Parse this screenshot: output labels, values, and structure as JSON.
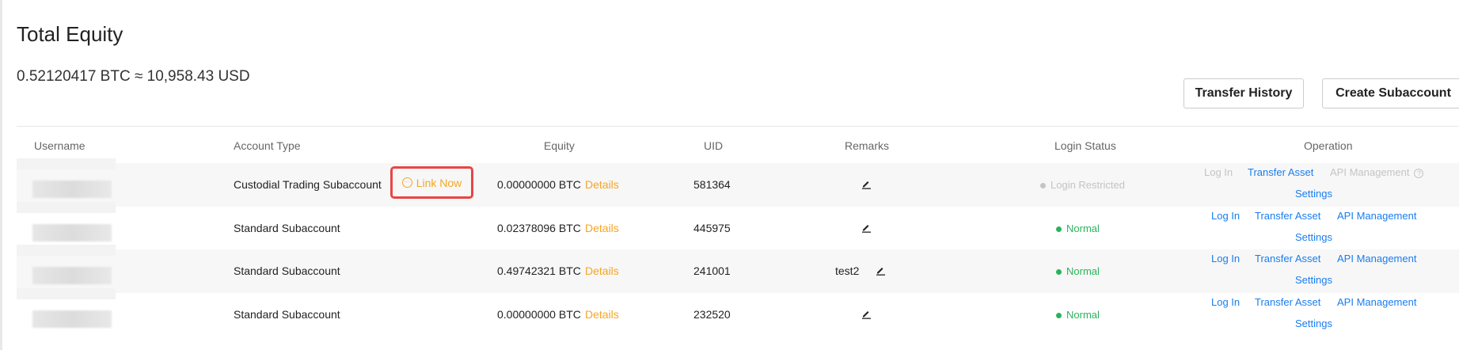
{
  "header": {
    "title": "Total Equity",
    "equity": "0.52120417 BTC ≈ 10,958.43 USD"
  },
  "buttons": {
    "transfer_history": "Transfer History",
    "create_subaccount": "Create Subaccount"
  },
  "table": {
    "columns": [
      "Username",
      "Account Type",
      "Equity",
      "UID",
      "Remarks",
      "Login Status",
      "Operation"
    ],
    "rows": [
      {
        "account_type": "Custodial Trading Subaccount",
        "link_now": "Link Now",
        "equity": "0.00000000 BTC",
        "details": "Details",
        "uid": "581364",
        "remarks": "",
        "status": "Login Restricted",
        "ops": {
          "login": "Log In",
          "transfer": "Transfer Asset",
          "api": "API Management",
          "settings": "Settings"
        }
      },
      {
        "account_type": "Standard Subaccount",
        "equity": "0.02378096 BTC",
        "details": "Details",
        "uid": "445975",
        "remarks": "",
        "status": "Normal",
        "ops": {
          "login": "Log In",
          "transfer": "Transfer Asset",
          "api": "API Management",
          "settings": "Settings"
        }
      },
      {
        "account_type": "Standard Subaccount",
        "equity": "0.49742321 BTC",
        "details": "Details",
        "uid": "241001",
        "remarks": "test2",
        "status": "Normal",
        "ops": {
          "login": "Log In",
          "transfer": "Transfer Asset",
          "api": "API Management",
          "settings": "Settings"
        }
      },
      {
        "account_type": "Standard Subaccount",
        "equity": "0.00000000 BTC",
        "details": "Details",
        "uid": "232520",
        "remarks": "",
        "status": "Normal",
        "ops": {
          "login": "Log In",
          "transfer": "Transfer Asset",
          "api": "API Management",
          "settings": "Settings"
        }
      }
    ]
  },
  "colors": {
    "accent": "#f5a623",
    "link": "#1a7df0",
    "normal": "#2bb35a",
    "disabled": "#c4c4c4",
    "highlight": "#e84545"
  }
}
